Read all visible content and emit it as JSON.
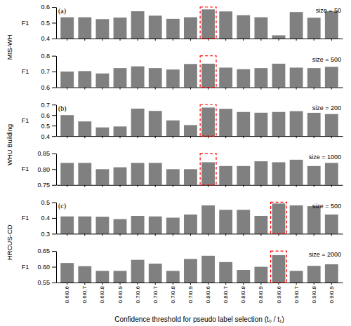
{
  "chart_data": [
    {
      "type": "bar",
      "categories": [
        "0.6/0.6",
        "0.6/0.7",
        "0.6/0.8",
        "0.6/0.9",
        "0.7/0.6",
        "0.7/0.7",
        "0.7/0.8",
        "0.7/0.9",
        "0.8/0.6",
        "0.8/0.7",
        "0.8/0.8",
        "0.8/0.9",
        "0.9/0.6",
        "0.9/0.7",
        "0.9/0.8",
        "0.9/0.9"
      ],
      "values": [
        0.535,
        0.535,
        0.523,
        0.533,
        0.573,
        0.545,
        0.525,
        0.535,
        0.585,
        0.572,
        0.548,
        0.535,
        0.42,
        0.568,
        0.532,
        0.573
      ],
      "color": "#808080",
      "ylabel": "F1",
      "ylim": [
        0.4,
        0.6
      ],
      "yticks": [
        0.4,
        0.5,
        0.6
      ],
      "tick_labels": "y",
      "highlight_category": "0.8/0.6",
      "highlight_color": "red",
      "annotations": [
        "size = 50",
        "(a)",
        "MtS-WH"
      ]
    },
    {
      "type": "bar",
      "categories": [
        "0.6/0.6",
        "0.6/0.7",
        "0.6/0.8",
        "0.6/0.9",
        "0.7/0.6",
        "0.7/0.7",
        "0.7/0.8",
        "0.7/0.9",
        "0.8/0.6",
        "0.8/0.7",
        "0.8/0.8",
        "0.8/0.9",
        "0.9/0.6",
        "0.9/0.7",
        "0.9/0.8",
        "0.9/0.9"
      ],
      "values": [
        0.7,
        0.703,
        0.688,
        0.722,
        0.733,
        0.722,
        0.713,
        0.748,
        0.75,
        0.725,
        0.715,
        0.722,
        0.75,
        0.725,
        0.722,
        0.73
      ],
      "color": "#808080",
      "ylabel": "F1",
      "ylim": [
        0.6,
        0.8
      ],
      "yticks": [
        0.6,
        0.7,
        0.8
      ],
      "tick_labels": "y",
      "highlight_category": "0.8/0.6",
      "highlight_color": "red",
      "annotations": [
        "size = 500"
      ]
    },
    {
      "type": "bar",
      "categories": [
        "0.6/0.6",
        "0.6/0.7",
        "0.6/0.8",
        "0.6/0.9",
        "0.7/0.6",
        "0.7/0.7",
        "0.7/0.8",
        "0.7/0.9",
        "0.8/0.6",
        "0.8/0.7",
        "0.8/0.8",
        "0.8/0.9",
        "0.9/0.6",
        "0.9/0.7",
        "0.9/0.8",
        "0.9/0.9"
      ],
      "values": [
        0.6,
        0.54,
        0.483,
        0.492,
        0.662,
        0.64,
        0.55,
        0.505,
        0.672,
        0.66,
        0.63,
        0.623,
        0.63,
        0.638,
        0.622,
        0.61
      ],
      "color": "#808080",
      "ylabel": "F1",
      "ylim": [
        0.4,
        0.7
      ],
      "yticks": [
        0.4,
        0.5,
        0.6,
        0.7
      ],
      "tick_labels": "y",
      "highlight_category": "0.8/0.6",
      "highlight_color": "red",
      "annotations": [
        "size = 200",
        "(b)",
        "WHU Building"
      ]
    },
    {
      "type": "bar",
      "categories": [
        "0.6/0.6",
        "0.6/0.7",
        "0.6/0.8",
        "0.6/0.9",
        "0.7/0.6",
        "0.7/0.7",
        "0.7/0.8",
        "0.7/0.9",
        "0.8/0.6",
        "0.8/0.7",
        "0.8/0.8",
        "0.8/0.9",
        "0.9/0.6",
        "0.9/0.7",
        "0.9/0.8",
        "0.9/0.9"
      ],
      "values": [
        0.82,
        0.82,
        0.8,
        0.806,
        0.82,
        0.82,
        0.8,
        0.8,
        0.822,
        0.81,
        0.81,
        0.825,
        0.822,
        0.83,
        0.81,
        0.82
      ],
      "color": "#808080",
      "ylabel": "F1",
      "ylim": [
        0.75,
        0.85
      ],
      "yticks": [
        0.75,
        {
          "value": 0.8,
          "label": "0.80"
        },
        0.85
      ],
      "tick_labels": "y",
      "highlight_category": "0.8/0.6",
      "highlight_color": "red",
      "annotations": [
        "size = 1000"
      ]
    },
    {
      "type": "bar",
      "categories": [
        "0.6/0.6",
        "0.6/0.7",
        "0.6/0.8",
        "0.6/0.9",
        "0.7/0.6",
        "0.7/0.7",
        "0.7/0.8",
        "0.7/0.9",
        "0.8/0.6",
        "0.8/0.7",
        "0.8/0.8",
        "0.8/0.9",
        "0.9/0.6",
        "0.9/0.7",
        "0.9/0.8",
        "0.9/0.9"
      ],
      "values": [
        0.41,
        0.41,
        0.408,
        0.393,
        0.413,
        0.41,
        0.402,
        0.422,
        0.48,
        0.452,
        0.452,
        0.413,
        0.492,
        0.48,
        0.475,
        0.422
      ],
      "color": "#808080",
      "ylabel": "F1",
      "ylim": [
        0.3,
        0.5
      ],
      "yticks": [
        0.3,
        0.4,
        0.5
      ],
      "tick_labels": "y",
      "highlight_category": "0.9/0.6",
      "highlight_color": "red",
      "annotations": [
        "size = 500",
        "(c)",
        "HRCUS-CD"
      ]
    },
    {
      "type": "bar",
      "categories": [
        "0.6/0.6",
        "0.6/0.7",
        "0.6/0.8",
        "0.6/0.9",
        "0.7/0.6",
        "0.7/0.7",
        "0.7/0.8",
        "0.7/0.9",
        "0.8/0.6",
        "0.8/0.7",
        "0.8/0.8",
        "0.8/0.9",
        "0.9/0.6",
        "0.9/0.7",
        "0.9/0.8",
        "0.9/0.9"
      ],
      "values": [
        0.612,
        0.602,
        0.587,
        0.587,
        0.622,
        0.61,
        0.587,
        0.625,
        0.635,
        0.615,
        0.59,
        0.6,
        0.637,
        0.587,
        0.603,
        0.608
      ],
      "color": "#808080",
      "ylabel": "F1",
      "xlabel": "Confidence threshold for pseudo label selection (t₀ / t₁)",
      "ylim": [
        0.55,
        0.65
      ],
      "yticks": [
        0.55,
        {
          "value": 0.6,
          "label": "0.60"
        },
        0.65
      ],
      "highlight_category": "0.9/0.6",
      "highlight_color": "red",
      "annotations": [
        "size = 2000"
      ]
    }
  ]
}
